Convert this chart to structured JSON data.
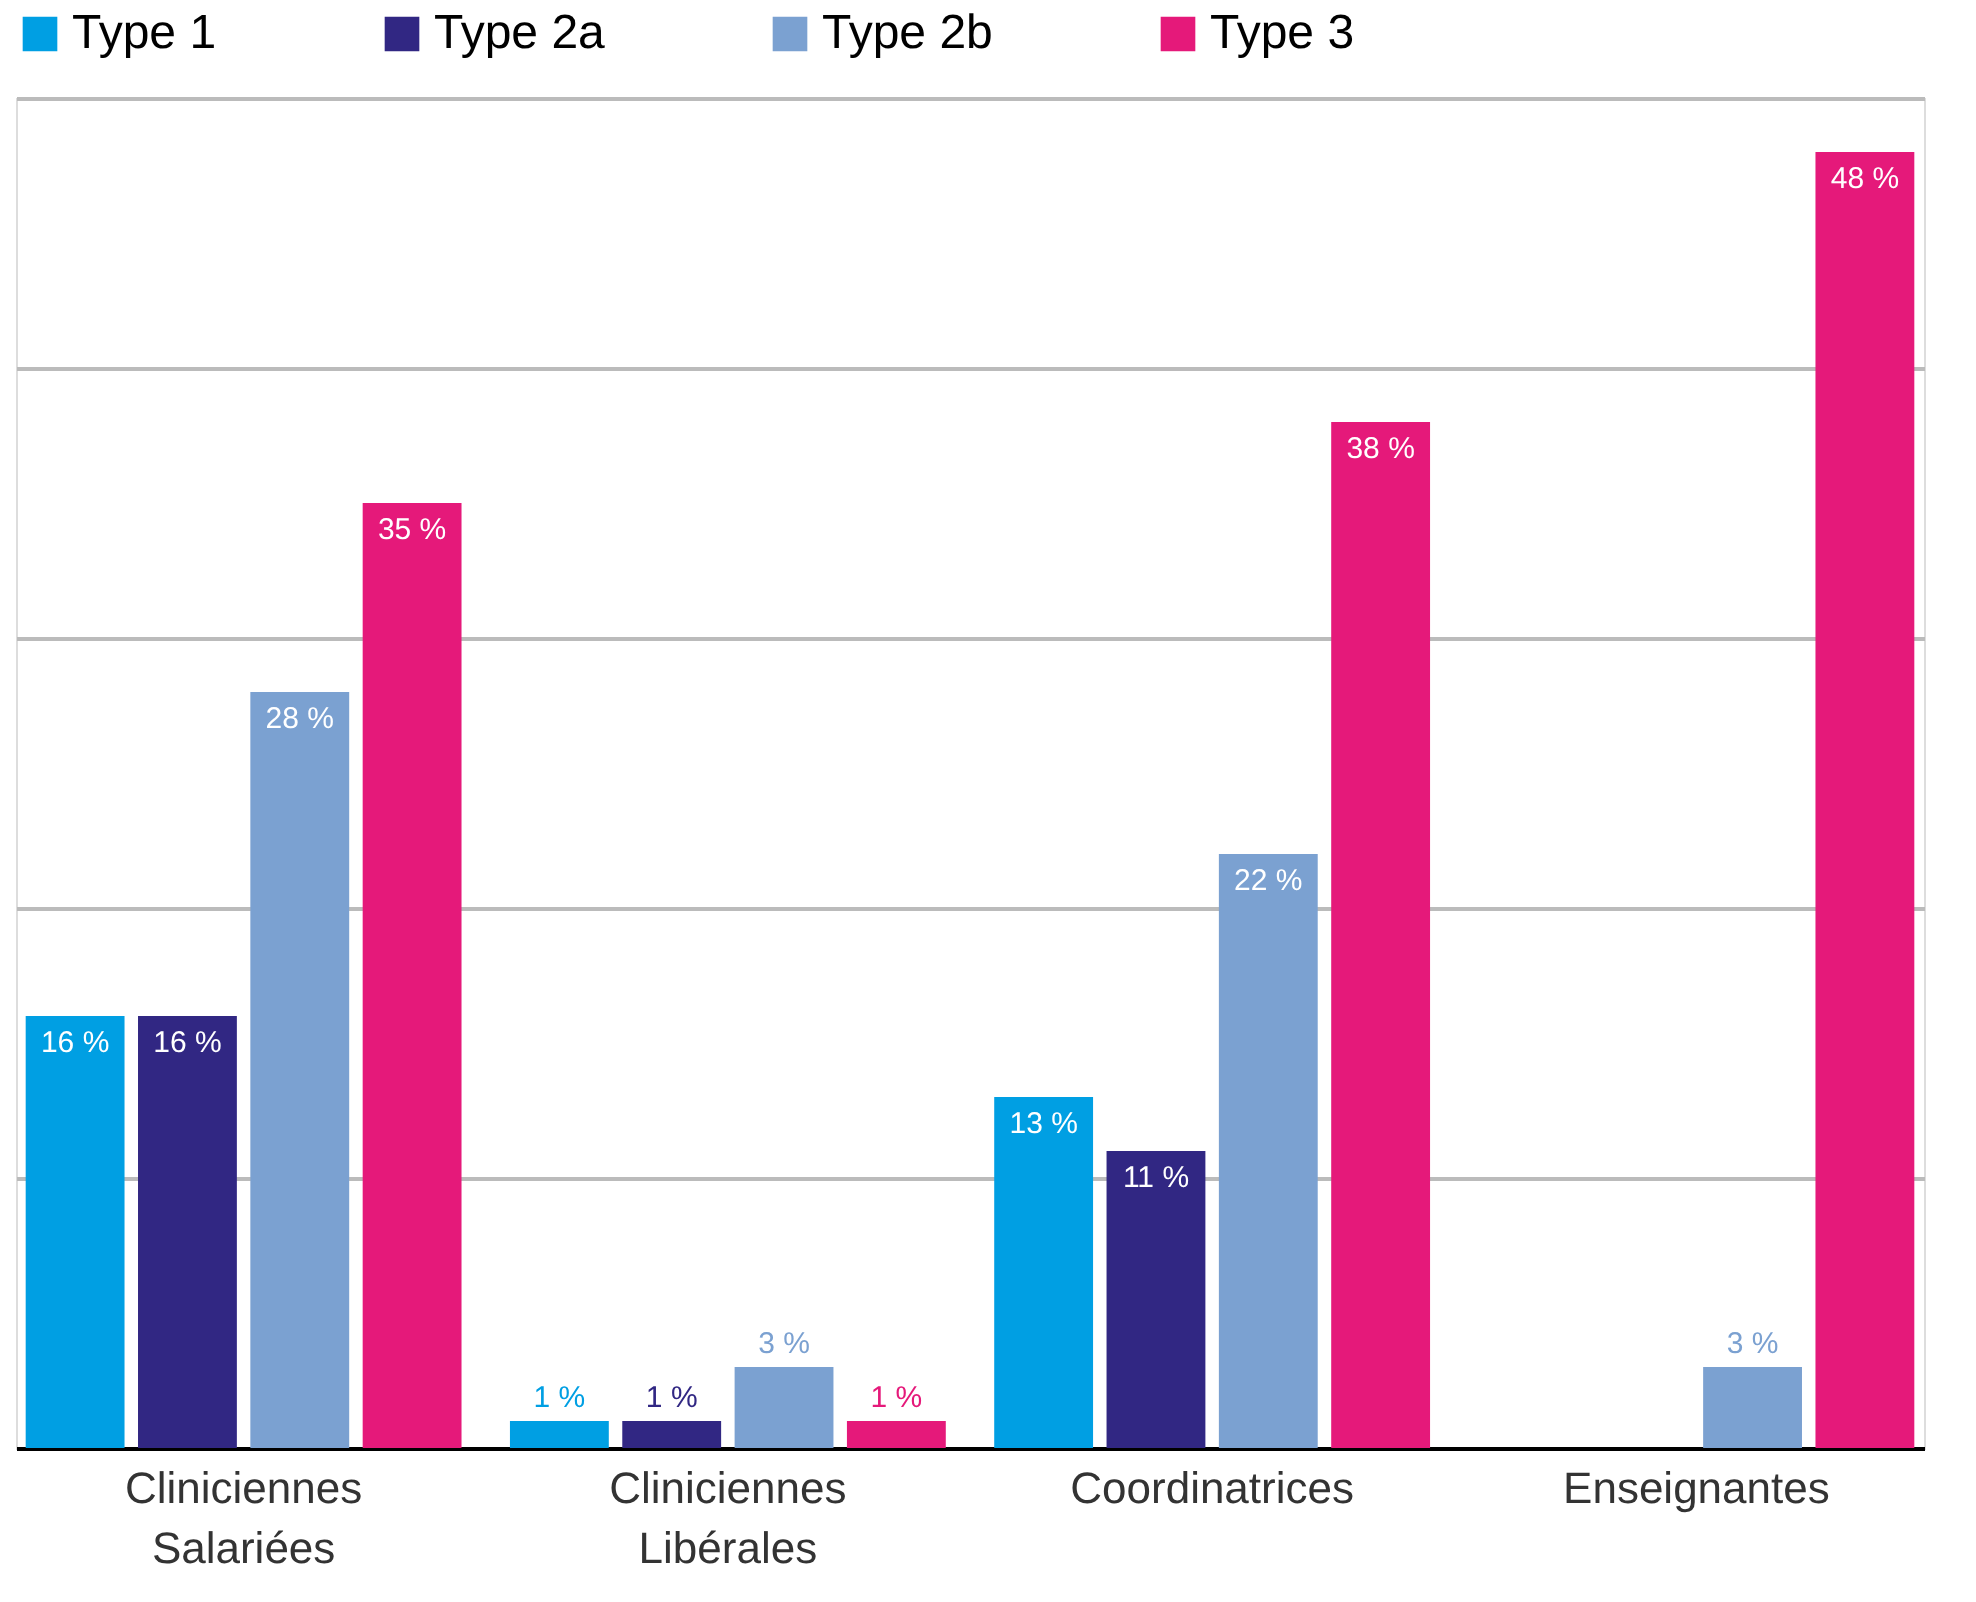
{
  "chart_data": {
    "type": "bar",
    "categories": [
      "Cliniciennes\nSalariées",
      "Cliniciennes\nLibérales",
      "Coordinatrices",
      "Enseignantes"
    ],
    "series": [
      {
        "name": "Type 1",
        "color": "#009fe3",
        "values": [
          16,
          1,
          13,
          null
        ],
        "value_labels": [
          "16 %",
          "1 %",
          "13 %",
          null
        ]
      },
      {
        "name": "Type 2a",
        "color": "#312783",
        "values": [
          16,
          1,
          11,
          null
        ],
        "value_labels": [
          "16 %",
          "1 %",
          "11 %",
          null
        ]
      },
      {
        "name": "Type 2b",
        "color": "#7ba1d1",
        "values": [
          28,
          3,
          22,
          3
        ],
        "value_labels": [
          "28 %",
          "3 %",
          "22 %",
          "3 %"
        ]
      },
      {
        "name": "Type 3",
        "color": "#e5197a",
        "values": [
          35,
          1,
          38,
          48
        ],
        "value_labels": [
          "35 %",
          "1 %",
          "38 %",
          "48 %"
        ]
      }
    ],
    "grid": "y",
    "legend": "top",
    "tick_labels": "x"
  }
}
